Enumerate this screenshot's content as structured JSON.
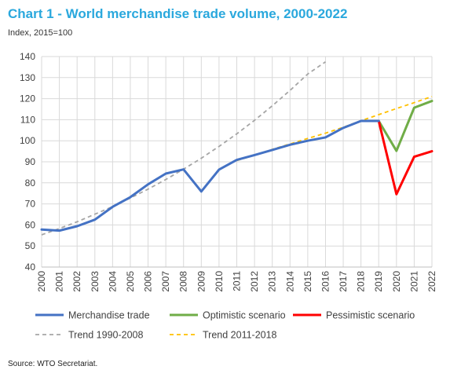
{
  "title": "Chart 1 - World merchandise trade volume, 2000-2022",
  "subtitle": "Index, 2015=100",
  "source": "Source:   WTO Secretariat.",
  "chart_data": {
    "type": "line",
    "ylim": [
      40,
      140
    ],
    "yticks": [
      40,
      50,
      60,
      70,
      80,
      90,
      100,
      110,
      120,
      130,
      140
    ],
    "x": [
      "2000",
      "2001",
      "2002",
      "2003",
      "2004",
      "2005",
      "2006",
      "2007",
      "2008",
      "2009",
      "2010",
      "2011",
      "2012",
      "2013",
      "2014",
      "2015",
      "2016",
      "2017",
      "2018",
      "2019",
      "2020",
      "2021",
      "2022"
    ],
    "grid": true,
    "legend_position": "bottom",
    "series": [
      {
        "name": "Merchandise trade",
        "color": "#4472c4",
        "style": "solid",
        "points": [
          [
            "2000",
            57.8
          ],
          [
            "2001",
            57.3
          ],
          [
            "2002",
            59.4
          ],
          [
            "2003",
            62.5
          ],
          [
            "2004",
            68.6
          ],
          [
            "2005",
            73.2
          ],
          [
            "2006",
            79.3
          ],
          [
            "2007",
            84.4
          ],
          [
            "2008",
            86.4
          ],
          [
            "2009",
            75.9
          ],
          [
            "2010",
            86.3
          ],
          [
            "2011",
            90.9
          ],
          [
            "2012",
            93.2
          ],
          [
            "2013",
            95.6
          ],
          [
            "2014",
            98.1
          ],
          [
            "2015",
            100.0
          ],
          [
            "2016",
            101.6
          ],
          [
            "2017",
            106.1
          ],
          [
            "2018",
            109.4
          ],
          [
            "2019",
            109.4
          ]
        ]
      },
      {
        "name": "Optimistic scenario",
        "color": "#70ad47",
        "style": "solid",
        "points": [
          [
            "2019",
            109.4
          ],
          [
            "2020",
            95.2
          ],
          [
            "2021",
            115.7
          ],
          [
            "2022",
            118.9
          ]
        ]
      },
      {
        "name": "Pessimistic scenario",
        "color": "#ff0000",
        "style": "solid",
        "points": [
          [
            "2019",
            109.4
          ],
          [
            "2020",
            74.6
          ],
          [
            "2021",
            92.4
          ],
          [
            "2022",
            95.0
          ]
        ]
      },
      {
        "name": "Trend 1990-2008",
        "color": "#a6a6a6",
        "style": "dashed",
        "points": [
          [
            "2000",
            55.3
          ],
          [
            "2001",
            58.3
          ],
          [
            "2002",
            61.5
          ],
          [
            "2003",
            65.1
          ],
          [
            "2004",
            68.7
          ],
          [
            "2005",
            72.8
          ],
          [
            "2006",
            77.0
          ],
          [
            "2007",
            81.6
          ],
          [
            "2008",
            86.5
          ],
          [
            "2009",
            91.7
          ],
          [
            "2010",
            97.3
          ],
          [
            "2011",
            103.3
          ],
          [
            "2012",
            109.7
          ],
          [
            "2013",
            116.6
          ],
          [
            "2014",
            123.9
          ],
          [
            "2015",
            131.7
          ],
          [
            "2016",
            137.5
          ]
        ]
      },
      {
        "name": "Trend 2011-2018",
        "color": "#ffc000",
        "style": "dashed",
        "points": [
          [
            "2011",
            90.6
          ],
          [
            "2012",
            93.1
          ],
          [
            "2013",
            95.9
          ],
          [
            "2014",
            98.5
          ],
          [
            "2015",
            101.1
          ],
          [
            "2016",
            103.6
          ],
          [
            "2017",
            106.4
          ],
          [
            "2018",
            109.5
          ],
          [
            "2019",
            112.4
          ],
          [
            "2020",
            115.3
          ],
          [
            "2021",
            118.1
          ],
          [
            "2022",
            121.0
          ]
        ]
      }
    ]
  }
}
